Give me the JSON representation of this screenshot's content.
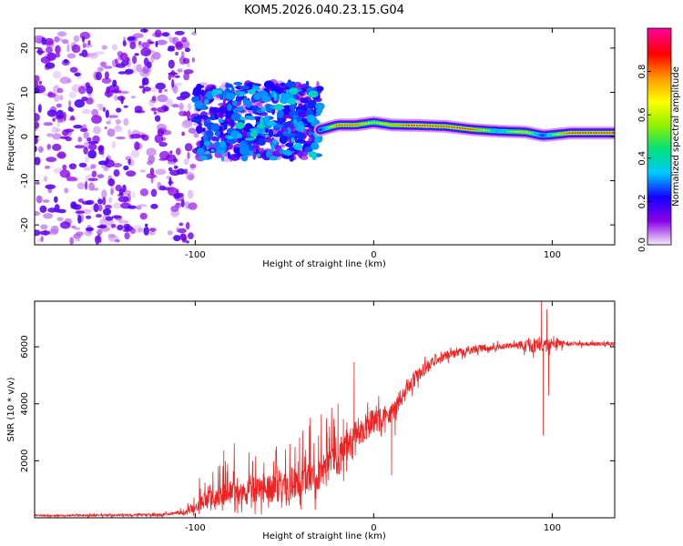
{
  "title": "KOM5.2026.040.23.15.G04",
  "chart_data": [
    {
      "type": "heatmap",
      "xlabel": "Height of straight line (km)",
      "ylabel": "Frequency (Hz)",
      "xlim": [
        -190,
        135
      ],
      "ylim": [
        -24.5,
        24.5
      ],
      "xticks": [
        -100,
        0,
        100
      ],
      "xtick_labels": [
        "-100",
        "0",
        "100"
      ],
      "yticks": [
        -20,
        -10,
        0,
        10,
        20
      ],
      "ytick_labels": [
        "-20",
        "-10",
        "0",
        "10",
        "20"
      ],
      "colorbar": {
        "label": "Normalized spectral amplitude",
        "range": [
          0,
          1
        ],
        "ticks": [
          0,
          0.2,
          0.4,
          0.6,
          0.8
        ],
        "tick_labels": [
          "0.0",
          "0.2",
          "0.4",
          "0.6",
          "0.8"
        ],
        "colors": [
          "#f4ecfb",
          "#8a00e6",
          "#1400ff",
          "#00c8ff",
          "#00e07a",
          "#8ff000",
          "#ffff00",
          "#ff9900",
          "#ff0000",
          "#ff00a0"
        ]
      },
      "ridge": [
        {
          "x": -30,
          "f": 1.5,
          "a": 0.3
        },
        {
          "x": -20,
          "f": 2.6,
          "a": 0.85
        },
        {
          "x": -10,
          "f": 2.6,
          "a": 0.85
        },
        {
          "x": 0,
          "f": 3.2,
          "a": 0.6
        },
        {
          "x": 10,
          "f": 2.6,
          "a": 0.75
        },
        {
          "x": 25,
          "f": 2.5,
          "a": 0.95
        },
        {
          "x": 40,
          "f": 2.3,
          "a": 0.85
        },
        {
          "x": 55,
          "f": 1.6,
          "a": 0.9
        },
        {
          "x": 70,
          "f": 1.2,
          "a": 0.45
        },
        {
          "x": 85,
          "f": 1.0,
          "a": 0.75
        },
        {
          "x": 95,
          "f": 0.2,
          "a": 0.35
        },
        {
          "x": 110,
          "f": 0.8,
          "a": 0.92
        },
        {
          "x": 135,
          "f": 0.8,
          "a": 0.92
        }
      ],
      "blob_regions": [
        {
          "x0": -190,
          "x1": -100,
          "f0": -24,
          "f1": 24,
          "density": "sparse",
          "amp": 0.12
        },
        {
          "x0": -100,
          "x1": -30,
          "f0": -5,
          "f1": 12,
          "density": "dense",
          "amp": 0.22
        }
      ]
    },
    {
      "type": "line",
      "xlabel": "Height of straight line (km)",
      "ylabel": "SNR (10 * v/v)",
      "xlim": [
        -190,
        135
      ],
      "ylim": [
        0,
        7600
      ],
      "xticks": [
        -100,
        0,
        100
      ],
      "xtick_labels": [
        "-100",
        "0",
        "100"
      ],
      "yticks": [
        2000,
        4000,
        6000
      ],
      "ytick_labels": [
        "2000",
        "4000",
        "6000"
      ],
      "color": "#ee2222",
      "baseline": [
        {
          "x": -190,
          "y": 80
        },
        {
          "x": -120,
          "y": 100
        },
        {
          "x": -105,
          "y": 200
        },
        {
          "x": -95,
          "y": 600
        },
        {
          "x": -80,
          "y": 900
        },
        {
          "x": -60,
          "y": 1000
        },
        {
          "x": -40,
          "y": 1200
        },
        {
          "x": -30,
          "y": 1500
        },
        {
          "x": -20,
          "y": 2100
        },
        {
          "x": -10,
          "y": 2900
        },
        {
          "x": 0,
          "y": 3400
        },
        {
          "x": 10,
          "y": 3700
        },
        {
          "x": 20,
          "y": 4700
        },
        {
          "x": 30,
          "y": 5300
        },
        {
          "x": 40,
          "y": 5700
        },
        {
          "x": 60,
          "y": 5950
        },
        {
          "x": 80,
          "y": 6050
        },
        {
          "x": 100,
          "y": 6100
        },
        {
          "x": 135,
          "y": 6100
        }
      ],
      "noise": [
        {
          "x": -190,
          "amp": 50
        },
        {
          "x": -110,
          "amp": 80
        },
        {
          "x": -95,
          "amp": 500
        },
        {
          "x": -60,
          "amp": 800
        },
        {
          "x": -30,
          "amp": 1000
        },
        {
          "x": -20,
          "amp": 1100
        },
        {
          "x": 0,
          "amp": 700
        },
        {
          "x": 20,
          "amp": 500
        },
        {
          "x": 40,
          "amp": 250
        },
        {
          "x": 80,
          "amp": 150
        },
        {
          "x": 90,
          "amp": 500
        },
        {
          "x": 100,
          "amp": 300
        },
        {
          "x": 110,
          "amp": 120
        },
        {
          "x": 135,
          "amp": 100
        }
      ],
      "spikes": [
        {
          "x": -84,
          "y": 2350
        },
        {
          "x": -25,
          "y": 2800
        },
        {
          "x": -20,
          "y": 4000
        },
        {
          "x": -17,
          "y": 3450
        },
        {
          "x": -11,
          "y": 5450
        },
        {
          "x": 10,
          "y": 1500
        },
        {
          "x": 12,
          "y": 2900
        },
        {
          "x": 94,
          "y": 7600
        },
        {
          "x": 95,
          "y": 2900
        },
        {
          "x": 97,
          "y": 7300
        },
        {
          "x": 98,
          "y": 4300
        }
      ]
    }
  ]
}
